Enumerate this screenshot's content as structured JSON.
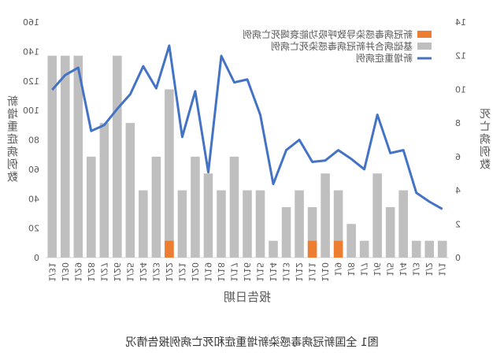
{
  "chart_data": {
    "type": "bar+line",
    "mirrored": true,
    "caption": "图1 全国新冠病毒感染新增重症和死亡病例报告情况",
    "xlabel": "报告日期",
    "ylabel_left": "死亡病例数",
    "ylabel_right": "新增重症病例数",
    "ylim_left": [
      0,
      14
    ],
    "yticks_left": [
      "0",
      "2",
      "4",
      "6",
      "8",
      "10",
      "12",
      "14"
    ],
    "ylim_right": [
      0,
      160
    ],
    "yticks_right": [
      "0",
      "20",
      "40",
      "60",
      "80",
      "100",
      "120",
      "140",
      "160"
    ],
    "categories": [
      "1/31",
      "1/30",
      "1/29",
      "1/28",
      "1/27",
      "1/26",
      "1/25",
      "1/24",
      "1/23",
      "1/22",
      "1/21",
      "1/20",
      "1/19",
      "1/18",
      "1/17",
      "1/16",
      "1/15",
      "1/14",
      "1/13",
      "1/12",
      "1/11",
      "1/10",
      "1/9",
      "1/8",
      "1/7",
      "1/6",
      "1/5",
      "1/4",
      "1/3",
      "1/2",
      "1/1"
    ],
    "series": [
      {
        "name": "基础病合并新冠病毒感染死亡病例",
        "type": "bar",
        "axis": "left",
        "color": "#bfbfbf",
        "values": [
          12,
          12,
          12,
          6,
          8,
          12,
          8,
          4,
          6,
          10,
          4,
          6,
          5,
          4,
          6,
          4,
          4,
          1,
          3,
          4,
          3,
          5,
          4,
          2,
          1,
          5,
          3,
          4,
          1,
          1,
          1
        ]
      },
      {
        "name": "新冠病毒感染导致呼吸功能衰竭死亡病例",
        "type": "bar",
        "axis": "left",
        "color": "#ed7d31",
        "values": [
          0,
          0,
          0,
          0,
          0,
          0,
          0,
          0,
          0,
          1,
          0,
          0,
          0,
          0,
          0,
          0,
          0,
          0,
          0,
          0,
          1,
          0,
          1,
          0,
          0,
          0,
          0,
          0,
          0,
          0,
          0
        ]
      },
      {
        "name": "新增重症病例",
        "type": "line",
        "axis": "right",
        "color": "#4472c4",
        "values": [
          114,
          124,
          129,
          86,
          90,
          101,
          111,
          130,
          115,
          144,
          82,
          113,
          58,
          137,
          119,
          121,
          97,
          50,
          73,
          80,
          65,
          66,
          73,
          67,
          60,
          97,
          71,
          73,
          44,
          38,
          33
        ]
      }
    ],
    "legend_position": "top-right"
  },
  "colors": {
    "line": "#4472c4",
    "bar_gray": "#bfbfbf",
    "bar_orange": "#ed7d31",
    "axis": "#d9d9d9",
    "text": "#595959"
  }
}
